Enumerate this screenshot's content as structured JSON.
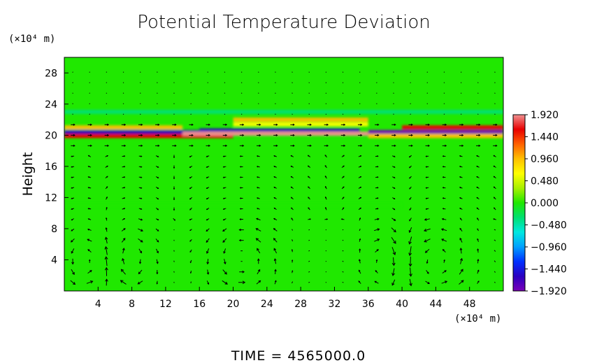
{
  "chart_data": {
    "type": "heatmap",
    "title": "Potential Temperature Deviation",
    "ylabel": "Height",
    "xlabel": "",
    "x_unit_label": "(×10⁴ m)",
    "y_unit_label": "(×10⁴ m)",
    "xlim": [
      0,
      52
    ],
    "ylim": [
      0,
      30
    ],
    "x_ticks": [
      "4",
      "8",
      "12",
      "16",
      "20",
      "24",
      "28",
      "32",
      "36",
      "40",
      "44",
      "48"
    ],
    "x_tick_values": [
      4,
      8,
      12,
      16,
      20,
      24,
      28,
      32,
      36,
      40,
      44,
      48
    ],
    "y_ticks": [
      "4",
      "8",
      "12",
      "16",
      "20",
      "24",
      "28"
    ],
    "y_tick_values": [
      4,
      8,
      12,
      16,
      20,
      24,
      28
    ],
    "colorbar": {
      "labels": [
        "1.920",
        "1.440",
        "0.960",
        "0.480",
        "0.000",
        "−0.480",
        "−0.960",
        "−1.440",
        "−1.920"
      ],
      "values": [
        1.92,
        1.44,
        0.96,
        0.48,
        0.0,
        -0.48,
        -0.96,
        -1.44,
        -1.92
      ],
      "range": [
        -1.92,
        1.92
      ],
      "colors": [
        "#7a00b8",
        "#2a00c0",
        "#0030ff",
        "#00a0ff",
        "#00e8e0",
        "#00e070",
        "#20e800",
        "#a8f000",
        "#ffff00",
        "#ffc000",
        "#ff6000",
        "#e80000",
        "#f09090"
      ]
    },
    "background_value": 0.1,
    "bands": [
      {
        "y": 21.0,
        "x_start": 0,
        "x_end": 14,
        "value": 0.9
      },
      {
        "y": 20.4,
        "x_start": 0,
        "x_end": 17,
        "value": -1.5
      },
      {
        "y": 19.9,
        "x_start": 0,
        "x_end": 20,
        "value": 1.7
      },
      {
        "y": 22.0,
        "x_start": 20,
        "x_end": 36,
        "value": 0.9
      },
      {
        "y": 21.4,
        "x_start": 20,
        "x_end": 36,
        "value": 0.7
      },
      {
        "y": 20.6,
        "x_start": 16,
        "x_end": 35,
        "value": -1.6
      },
      {
        "y": 20.2,
        "x_start": 14,
        "x_end": 36,
        "value": 1.8
      },
      {
        "y": 21.0,
        "x_start": 40,
        "x_end": 52,
        "value": 1.6
      },
      {
        "y": 20.4,
        "x_start": 36,
        "x_end": 52,
        "value": -1.9
      },
      {
        "y": 19.9,
        "x_start": 36,
        "x_end": 52,
        "value": 0.9
      },
      {
        "y": 23.0,
        "x_start": 0,
        "x_end": 52,
        "value": -0.2
      },
      {
        "y": 11.0,
        "x_start": 0,
        "x_end": 40,
        "value": -0.15
      }
    ],
    "vortices": [
      {
        "x": 2.5,
        "y": 3.5,
        "rx": 2.5,
        "ry": 4,
        "dir": 1
      },
      {
        "x": 8.0,
        "y": 4.0,
        "rx": 2.5,
        "ry": 4.5,
        "dir": -1
      },
      {
        "x": 21.0,
        "y": 4.0,
        "rx": 4,
        "ry": 4.5,
        "dir": 1
      },
      {
        "x": 38.0,
        "y": 4.0,
        "rx": 2.5,
        "ry": 4.5,
        "dir": -1
      },
      {
        "x": 44.0,
        "y": 4.0,
        "rx": 4,
        "ry": 4.5,
        "dir": 1
      }
    ],
    "grid": false,
    "legend": "colorbar-right"
  },
  "time_label": "TIME  =  4565000.0"
}
